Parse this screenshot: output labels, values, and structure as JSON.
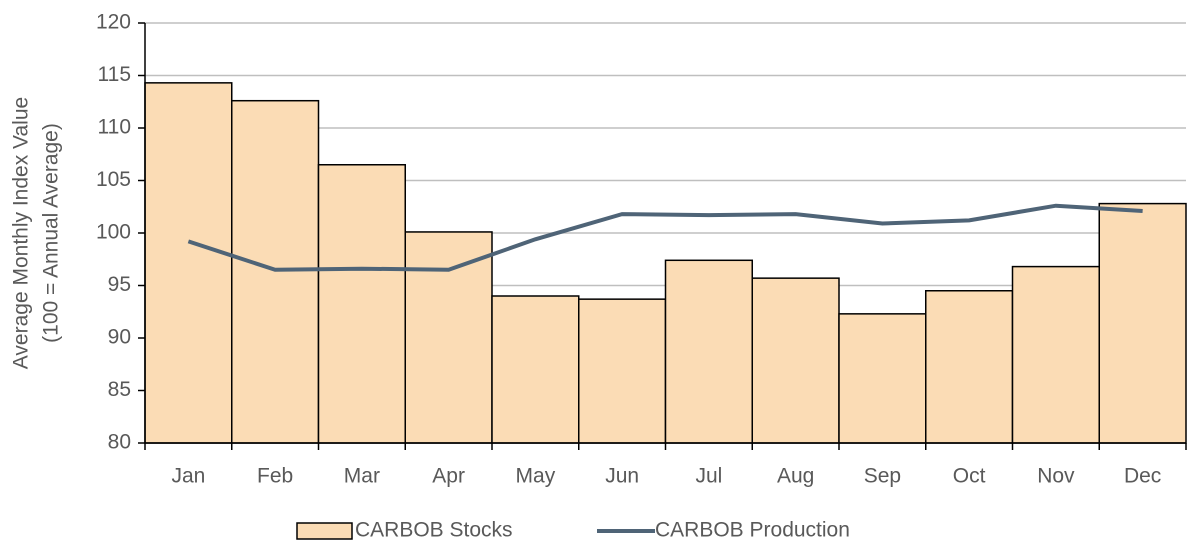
{
  "chart_data": {
    "type": "bar_line",
    "ylabel": [
      "Average Monthly Index Value",
      "(100 = Annual Average)"
    ],
    "categories": [
      "Jan",
      "Feb",
      "Mar",
      "Apr",
      "May",
      "Jun",
      "Jul",
      "Aug",
      "Sep",
      "Oct",
      "Nov",
      "Dec"
    ],
    "series": [
      {
        "name": "CARBOB Stocks",
        "type": "bar",
        "color": "#fbdcb5",
        "values": [
          114.3,
          112.6,
          106.5,
          100.1,
          94.0,
          93.7,
          97.4,
          95.7,
          92.3,
          94.5,
          96.8,
          102.8
        ]
      },
      {
        "name": "CARBOB Production",
        "type": "line",
        "color": "#4f6477",
        "values": [
          99.2,
          96.5,
          96.6,
          96.5,
          99.4,
          101.8,
          101.7,
          101.8,
          100.9,
          101.2,
          102.6,
          102.1
        ]
      }
    ],
    "ylim": [
      80,
      120
    ],
    "yticks": [
      80,
      85,
      90,
      95,
      100,
      105,
      110,
      115,
      120
    ],
    "grid": true,
    "legend": "bottom"
  }
}
